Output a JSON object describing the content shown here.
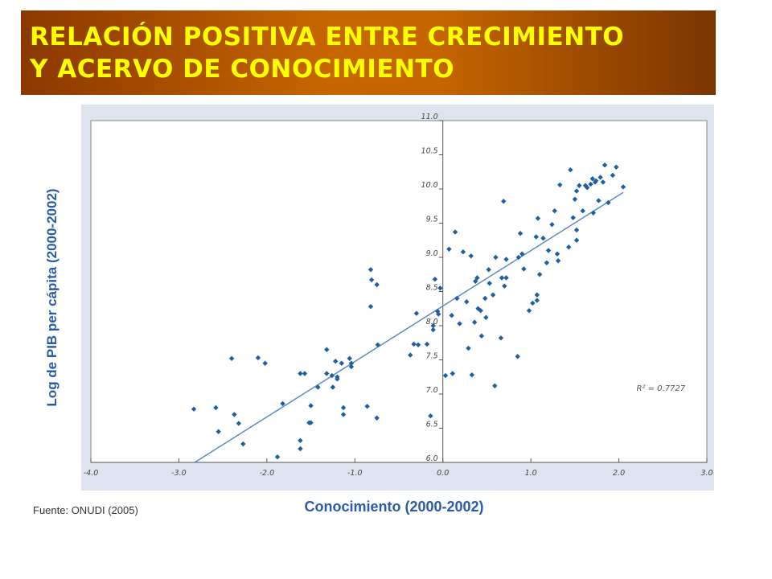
{
  "title": {
    "line1": "RELACIÓN POSITIVA ENTRE CRECIMIENTO",
    "line2": "Y ACERVO DE CONOCIMIENTO"
  },
  "source": "Fuente: ONUDI (2005)",
  "colors": {
    "title_text": "#ffff00",
    "title_bg": "#c86600",
    "label_text": "#2a5aa8",
    "points": "#1f5fa0",
    "fit_line": "#5b8ac6",
    "plot_bg": "#dde4ef"
  },
  "chart_data": {
    "type": "scatter",
    "xlabel": "Conocimiento (2000-2002)",
    "ylabel": "Log de PIB per cápita (2000-2002)",
    "xlim": [
      -4.0,
      3.0
    ],
    "ylim": [
      6.0,
      11.0
    ],
    "x_ticks": [
      "-4.0",
      "-3.0",
      "-2.0",
      "-1.0",
      "0.0",
      "1.0",
      "2.0",
      "3.0"
    ],
    "y_ticks": [
      "6.0",
      "6.5",
      "7.0",
      "7.5",
      "8.0",
      "8.5",
      "9.0",
      "9.5",
      "10.0",
      "10.5",
      "11.0"
    ],
    "grid": false,
    "annotation": "R² = 0.7727",
    "trendline": {
      "x": [
        -2.82,
        2.05
      ],
      "y": [
        6.0,
        9.95
      ]
    },
    "points": [
      [
        -2.83,
        6.78
      ],
      [
        -2.58,
        6.8
      ],
      [
        -2.55,
        6.45
      ],
      [
        -2.4,
        7.52
      ],
      [
        -2.37,
        6.7
      ],
      [
        -2.32,
        6.57
      ],
      [
        -2.27,
        6.27
      ],
      [
        -2.1,
        7.53
      ],
      [
        -2.02,
        7.45
      ],
      [
        -1.88,
        6.08
      ],
      [
        -1.82,
        6.86
      ],
      [
        -1.62,
        6.2
      ],
      [
        -1.62,
        6.32
      ],
      [
        -1.62,
        7.3
      ],
      [
        -1.57,
        7.3
      ],
      [
        -1.52,
        6.58
      ],
      [
        -1.5,
        6.58
      ],
      [
        -1.5,
        6.83
      ],
      [
        -1.42,
        7.1
      ],
      [
        -1.32,
        7.65
      ],
      [
        -1.32,
        7.3
      ],
      [
        -1.26,
        7.27
      ],
      [
        -1.25,
        7.1
      ],
      [
        -1.22,
        7.48
      ],
      [
        -1.2,
        7.22
      ],
      [
        -1.2,
        7.25
      ],
      [
        -1.15,
        7.45
      ],
      [
        -1.13,
        6.7
      ],
      [
        -1.13,
        6.8
      ],
      [
        -1.06,
        7.52
      ],
      [
        -1.04,
        7.45
      ],
      [
        -1.04,
        7.4
      ],
      [
        -0.86,
        6.82
      ],
      [
        -0.82,
        8.82
      ],
      [
        -0.82,
        8.28
      ],
      [
        -0.81,
        8.67
      ],
      [
        -0.75,
        8.6
      ],
      [
        -0.74,
        7.72
      ],
      [
        -0.75,
        6.65
      ],
      [
        -0.37,
        7.57
      ],
      [
        -0.33,
        7.73
      ],
      [
        -0.3,
        8.18
      ],
      [
        -0.28,
        7.72
      ],
      [
        -0.18,
        7.73
      ],
      [
        -0.14,
        6.68
      ],
      [
        -0.11,
        8.0
      ],
      [
        -0.11,
        7.94
      ],
      [
        -0.09,
        8.68
      ],
      [
        -0.06,
        8.21
      ],
      [
        -0.05,
        8.17
      ],
      [
        -0.03,
        8.55
      ],
      [
        0.03,
        7.27
      ],
      [
        0.07,
        9.12
      ],
      [
        0.1,
        8.15
      ],
      [
        0.11,
        7.3
      ],
      [
        0.14,
        9.37
      ],
      [
        0.16,
        8.4
      ],
      [
        0.19,
        8.03
      ],
      [
        0.23,
        9.08
      ],
      [
        0.27,
        8.35
      ],
      [
        0.29,
        7.67
      ],
      [
        0.32,
        9.02
      ],
      [
        0.33,
        7.28
      ],
      [
        0.36,
        8.05
      ],
      [
        0.37,
        8.65
      ],
      [
        0.39,
        8.7
      ],
      [
        0.4,
        8.25
      ],
      [
        0.43,
        8.22
      ],
      [
        0.44,
        7.85
      ],
      [
        0.48,
        8.4
      ],
      [
        0.49,
        8.12
      ],
      [
        0.52,
        8.82
      ],
      [
        0.53,
        8.62
      ],
      [
        0.57,
        8.45
      ],
      [
        0.59,
        7.12
      ],
      [
        0.6,
        9.0
      ],
      [
        0.66,
        7.82
      ],
      [
        0.67,
        8.7
      ],
      [
        0.69,
        9.82
      ],
      [
        0.7,
        8.58
      ],
      [
        0.72,
        8.7
      ],
      [
        0.72,
        8.97
      ],
      [
        0.85,
        7.55
      ],
      [
        0.86,
        9.0
      ],
      [
        0.88,
        9.35
      ],
      [
        0.9,
        9.05
      ],
      [
        0.92,
        8.83
      ],
      [
        0.98,
        8.22
      ],
      [
        1.02,
        8.33
      ],
      [
        1.06,
        9.3
      ],
      [
        1.07,
        8.37
      ],
      [
        1.07,
        8.45
      ],
      [
        1.08,
        9.57
      ],
      [
        1.1,
        8.75
      ],
      [
        1.14,
        9.28
      ],
      [
        1.18,
        8.92
      ],
      [
        1.2,
        9.1
      ],
      [
        1.24,
        9.48
      ],
      [
        1.27,
        9.68
      ],
      [
        1.3,
        9.05
      ],
      [
        1.31,
        8.95
      ],
      [
        1.33,
        10.06
      ],
      [
        1.43,
        9.15
      ],
      [
        1.45,
        10.28
      ],
      [
        1.48,
        9.58
      ],
      [
        1.5,
        9.85
      ],
      [
        1.52,
        9.97
      ],
      [
        1.52,
        9.4
      ],
      [
        1.52,
        9.25
      ],
      [
        1.55,
        10.05
      ],
      [
        1.59,
        9.68
      ],
      [
        1.62,
        10.05
      ],
      [
        1.64,
        10.02
      ],
      [
        1.68,
        10.07
      ],
      [
        1.7,
        10.15
      ],
      [
        1.71,
        9.65
      ],
      [
        1.73,
        10.1
      ],
      [
        1.74,
        10.12
      ],
      [
        1.77,
        9.83
      ],
      [
        1.79,
        10.17
      ],
      [
        1.82,
        10.1
      ],
      [
        1.84,
        10.35
      ],
      [
        1.88,
        9.8
      ],
      [
        1.93,
        10.2
      ],
      [
        1.97,
        10.32
      ],
      [
        2.05,
        10.03
      ]
    ]
  }
}
